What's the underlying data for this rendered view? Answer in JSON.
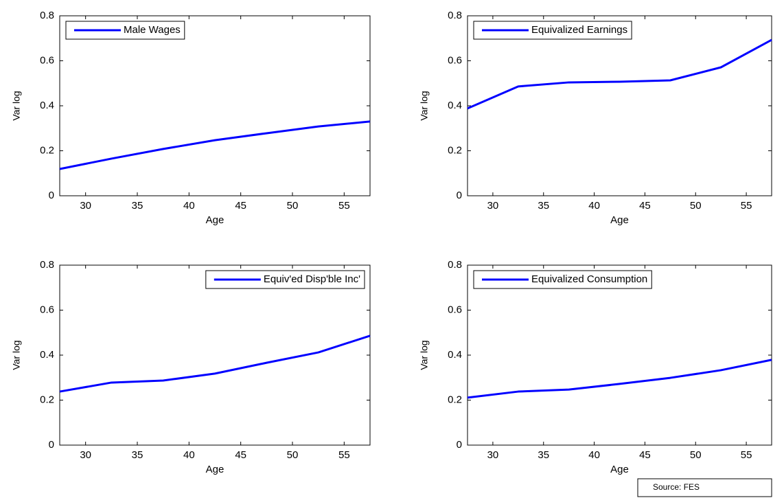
{
  "chart_data": [
    {
      "type": "line",
      "xlabel": "Age",
      "ylabel": "Var log",
      "legend": "upper left",
      "x": [
        27.5,
        32.5,
        37.5,
        42.5,
        47.5,
        52.5,
        57.5
      ],
      "series": [
        {
          "name": "Male Wages",
          "color": "#0000ff",
          "values": [
            0.119,
            0.165,
            0.208,
            0.247,
            0.278,
            0.308,
            0.33
          ]
        }
      ],
      "xlim": [
        27.5,
        57.5
      ],
      "ylim": [
        0,
        0.8
      ],
      "xticks": [
        30,
        35,
        40,
        45,
        50,
        55
      ],
      "yticks": [
        0,
        0.2,
        0.4,
        0.6,
        0.8
      ]
    },
    {
      "type": "line",
      "xlabel": "Age",
      "ylabel": "Var log",
      "legend": "upper left",
      "x": [
        27.5,
        32.5,
        37.5,
        42.5,
        47.5,
        52.5,
        57.5
      ],
      "series": [
        {
          "name": "Equivalized Earnings",
          "color": "#0000ff",
          "values": [
            0.388,
            0.486,
            0.504,
            0.507,
            0.513,
            0.571,
            0.693
          ]
        }
      ],
      "xlim": [
        27.5,
        57.5
      ],
      "ylim": [
        0,
        0.8
      ],
      "xticks": [
        30,
        35,
        40,
        45,
        50,
        55
      ],
      "yticks": [
        0,
        0.2,
        0.4,
        0.6,
        0.8
      ]
    },
    {
      "type": "line",
      "xlabel": "Age",
      "ylabel": "Var log",
      "legend": "upper right",
      "x": [
        27.5,
        32.5,
        37.5,
        42.5,
        47.5,
        52.5,
        57.5
      ],
      "series": [
        {
          "name": "Equiv'ed Disp'ble Inc'",
          "color": "#0000ff",
          "values": [
            0.238,
            0.278,
            0.287,
            0.318,
            0.366,
            0.412,
            0.486
          ]
        }
      ],
      "xlim": [
        27.5,
        57.5
      ],
      "ylim": [
        0,
        0.8
      ],
      "xticks": [
        30,
        35,
        40,
        45,
        50,
        55
      ],
      "yticks": [
        0,
        0.2,
        0.4,
        0.6,
        0.8
      ]
    },
    {
      "type": "line",
      "xlabel": "Age",
      "ylabel": "Var log",
      "legend": "upper left",
      "x": [
        27.5,
        32.5,
        37.5,
        42.5,
        47.5,
        52.5,
        57.5
      ],
      "series": [
        {
          "name": "Equivalized Consumption",
          "color": "#0000ff",
          "values": [
            0.211,
            0.238,
            0.247,
            0.272,
            0.299,
            0.333,
            0.379
          ]
        }
      ],
      "xlim": [
        27.5,
        57.5
      ],
      "ylim": [
        0,
        0.8
      ],
      "xticks": [
        30,
        35,
        40,
        45,
        50,
        55
      ],
      "yticks": [
        0,
        0.2,
        0.4,
        0.6,
        0.8
      ]
    }
  ],
  "source": "Source: FES"
}
